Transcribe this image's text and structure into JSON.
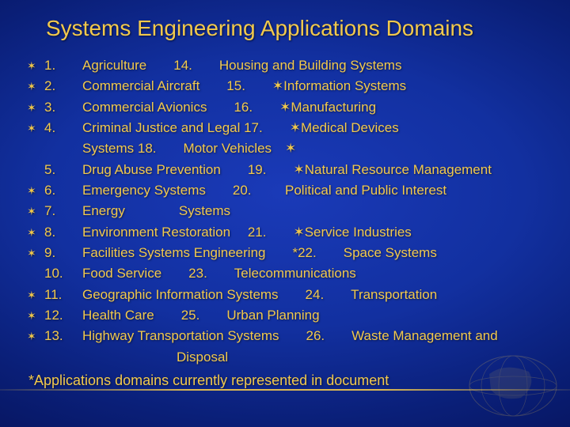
{
  "colors": {
    "text": "#f2c94c",
    "bg_center": "#1a3ab8",
    "bg_edge": "#020840"
  },
  "title": "Systems Engineering Applications Domains",
  "bullet_glyph": "✶",
  "rows": [
    {
      "bullet": true,
      "num": "1.",
      "text": "Agriculture  14.  Housing and Building Systems"
    },
    {
      "bullet": true,
      "num": "2.",
      "text": "Commercial Aircraft  15.  ✶Information Systems"
    },
    {
      "bullet": true,
      "num": "3.",
      "text": "Commercial Avionics  16.  ✶Manufacturing"
    },
    {
      "bullet": true,
      "num": "4.",
      "text": "Criminal Justice and Legal 17.  ✶Medical Devices"
    },
    {
      "bullet": false,
      "num": "",
      "text": "Systems 18.  Motor Vehicles ✶"
    },
    {
      "bullet": false,
      "num": "5.",
      "text": "Drug Abuse Prevention  19.  ✶Natural Resource Management"
    },
    {
      "bullet": true,
      "num": "6.",
      "text": "Emergency Systems  20.   Political and Public Interest"
    },
    {
      "bullet": true,
      "num": "7.",
      "text": "Energy    Systems"
    },
    {
      "bullet": true,
      "num": "8.",
      "text": "Environment Restoration  21.  ✶Service Industries"
    },
    {
      "bullet": true,
      "num": "9.",
      "text": "Facilities Systems Engineering  *22.  Space Systems"
    },
    {
      "bullet": false,
      "num": "10.",
      "text": "Food Service  23.  Telecommunications"
    },
    {
      "bullet": true,
      "num": "11.",
      "text": "Geographic Information Systems  24.  Transportation"
    },
    {
      "bullet": true,
      "num": "12.",
      "text": "Health Care  25.  Urban Planning"
    },
    {
      "bullet": true,
      "num": "13.",
      "text": "Highway Transportation Systems  26.  Waste Management and"
    },
    {
      "bullet": false,
      "num": "",
      "text": "       Disposal"
    }
  ],
  "footnote": "*Applications domains currently represented in document"
}
